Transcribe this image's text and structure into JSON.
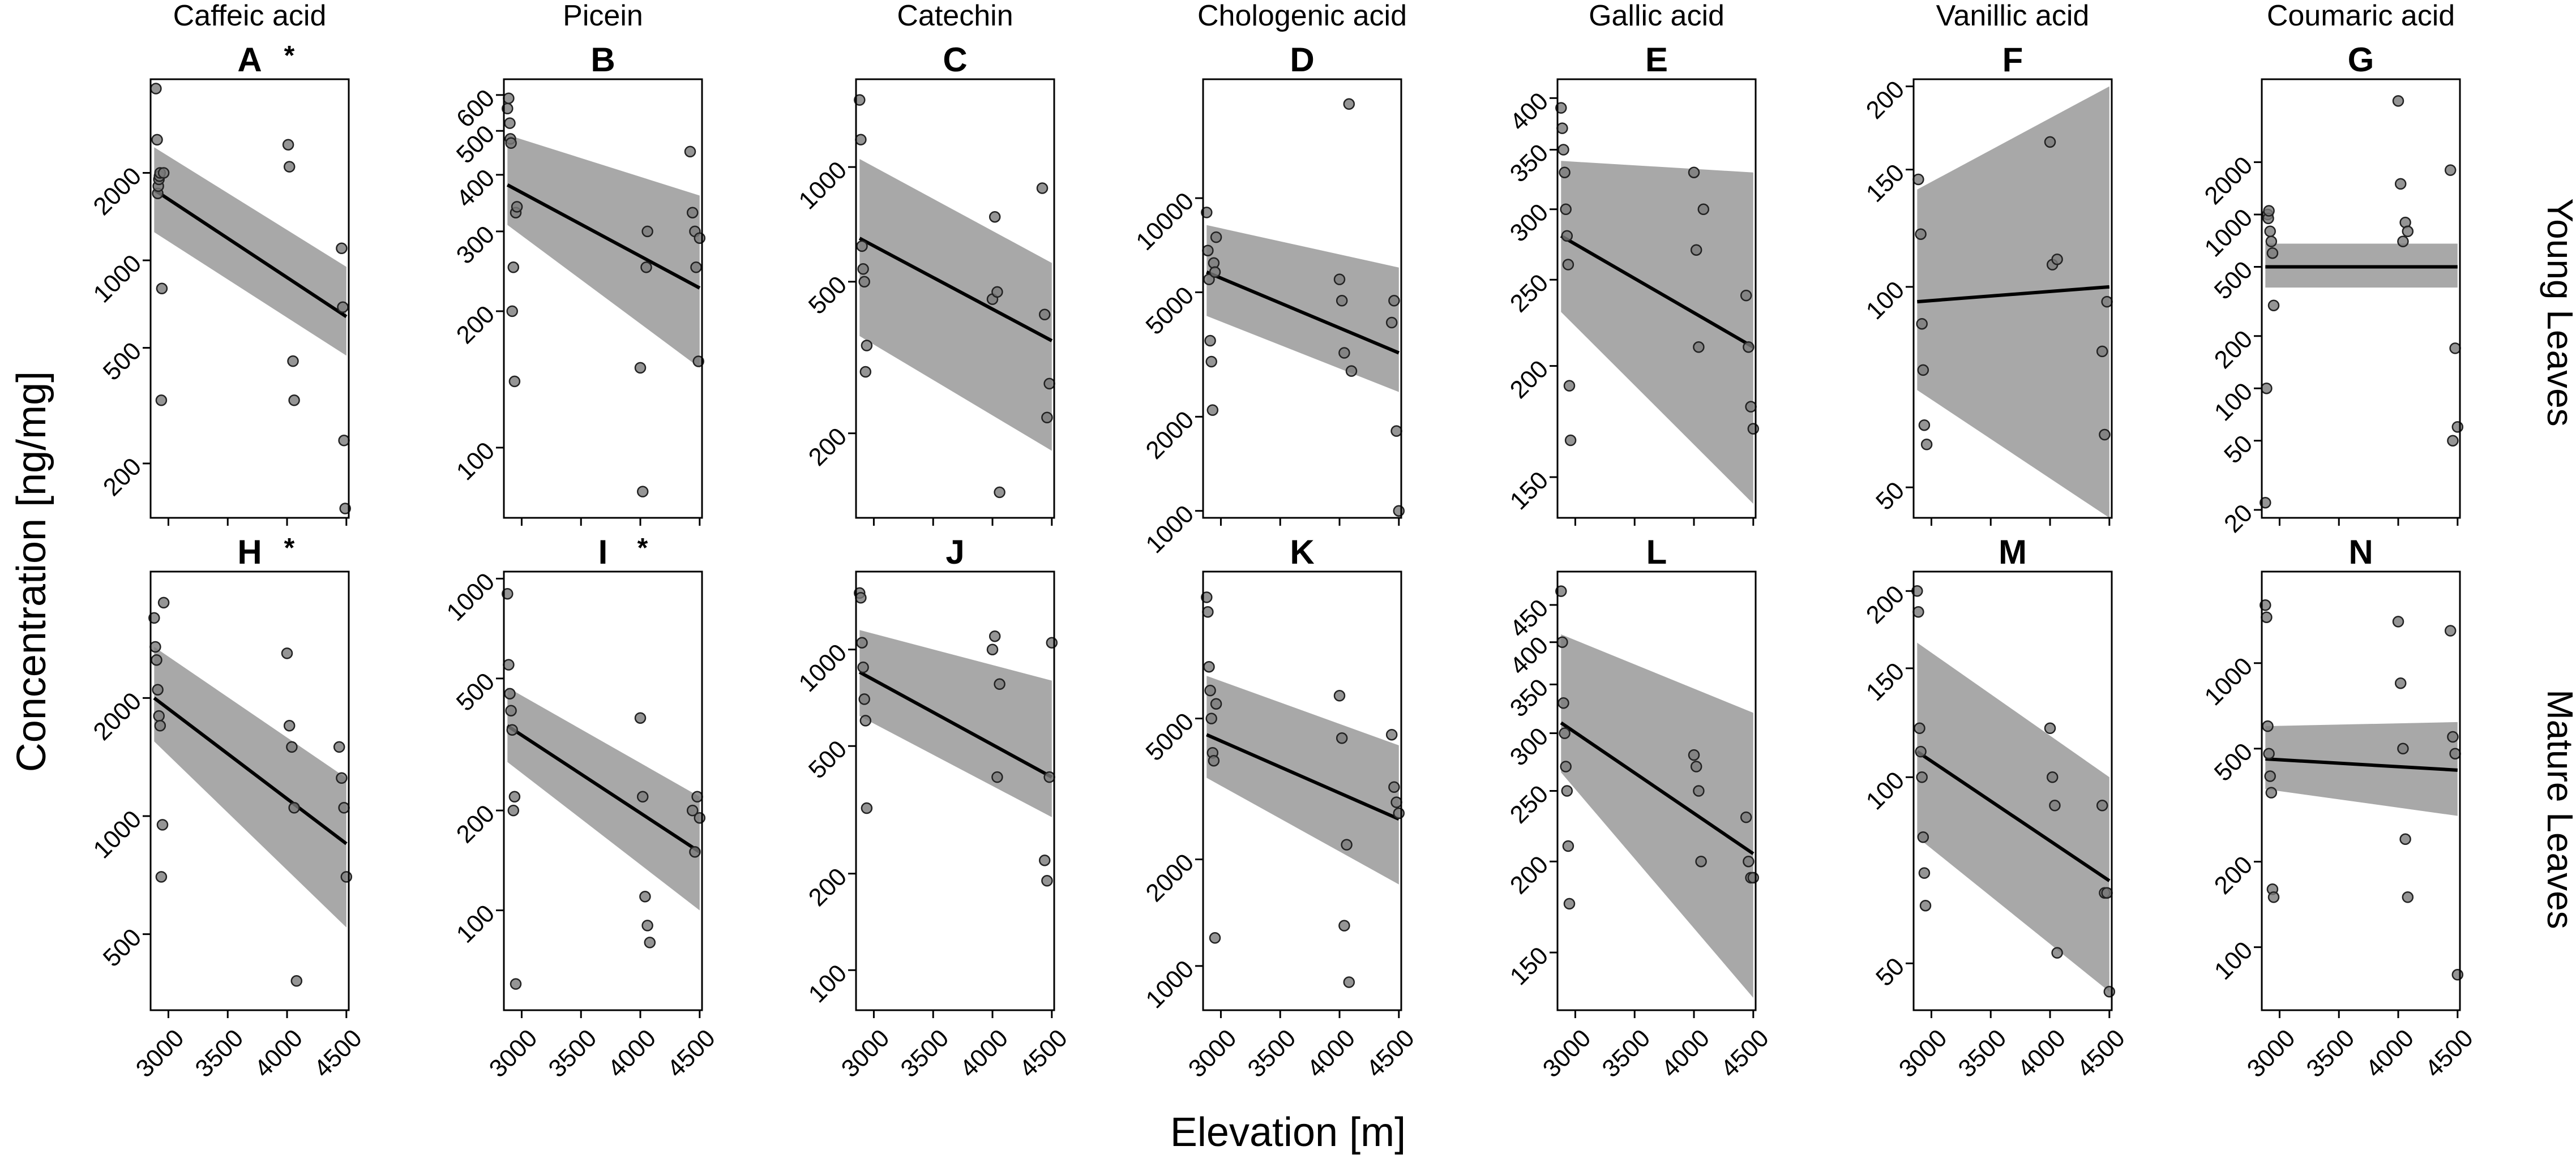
{
  "figure": {
    "x_axis_title": "Elevation [m]",
    "y_axis_title": "Concentration [ng/mg]",
    "row_labels": [
      "Young Leaves",
      "Mature Leaves"
    ],
    "column_titles": [
      "Caffeic acid",
      "Picein",
      "Catechin",
      "Chologenic acid",
      "Gallic acid",
      "Vanillic acid",
      "Coumaric acid"
    ],
    "x_ticks": [
      3000,
      3500,
      4000,
      4500
    ],
    "x_range": [
      2850,
      4520
    ],
    "y_scale": "log",
    "colors": {
      "band": "#a8a8a8",
      "point_fill": "#7a7a7a",
      "line": "#000000",
      "frame": "#000000"
    }
  },
  "chart_data": [
    {
      "type": "scatter",
      "letter": "A",
      "significance": "*",
      "row": "Young Leaves",
      "compound": "Caffeic acid",
      "ylim": [
        130,
        4200
      ],
      "y_ticks": [
        200,
        500,
        1000,
        2000
      ],
      "x": [
        2895,
        2905,
        2910,
        2915,
        2920,
        2925,
        2930,
        2940,
        2945,
        2960,
        4010,
        4020,
        4050,
        4060,
        4460,
        4470,
        4480,
        4490
      ],
      "y": [
        3900,
        2600,
        1700,
        1800,
        1900,
        1950,
        2000,
        330,
        800,
        2000,
        2500,
        2100,
        450,
        330,
        1100,
        690,
        240,
        140
      ],
      "fit": {
        "x": [
          2880,
          4500
        ],
        "y": [
          1750,
          640
        ],
        "lower": [
          1250,
          470
        ],
        "upper": [
          2450,
          950
        ]
      }
    },
    {
      "type": "scatter",
      "letter": "B",
      "significance": "",
      "row": "Young Leaves",
      "compound": "Picein",
      "ylim": [
        70,
        650
      ],
      "y_ticks": [
        100,
        200,
        300,
        400,
        500,
        600
      ],
      "x": [
        2880,
        2890,
        2900,
        2905,
        2910,
        2920,
        2930,
        2940,
        2950,
        2960,
        4000,
        4020,
        4050,
        4060,
        4420,
        4440,
        4460,
        4470,
        4490,
        4500
      ],
      "y": [
        560,
        590,
        520,
        480,
        470,
        200,
        250,
        140,
        330,
        340,
        150,
        80,
        250,
        300,
        450,
        330,
        300,
        250,
        155,
        290
      ],
      "fit": {
        "x": [
          2880,
          4500
        ],
        "y": [
          380,
          225
        ],
        "lower": [
          310,
          150
        ],
        "upper": [
          490,
          360
        ]
      }
    },
    {
      "type": "scatter",
      "letter": "C",
      "significance": "",
      "row": "Young Leaves",
      "compound": "Catechin",
      "ylim": [
        120,
        1700
      ],
      "y_ticks": [
        200,
        500,
        1000
      ],
      "x": [
        2880,
        2890,
        2900,
        2910,
        2920,
        2930,
        2940,
        4000,
        4020,
        4040,
        4060,
        4420,
        4440,
        4460,
        4480
      ],
      "y": [
        1500,
        1180,
        620,
        540,
        500,
        290,
        340,
        450,
        740,
        470,
        140,
        880,
        410,
        220,
        270
      ],
      "fit": {
        "x": [
          2880,
          4500
        ],
        "y": [
          650,
          350
        ],
        "lower": [
          360,
          180
        ],
        "upper": [
          1050,
          560
        ]
      }
    },
    {
      "type": "scatter",
      "letter": "D",
      "significance": "",
      "row": "Young Leaves",
      "compound": "Chologenic acid",
      "ylim": [
        950,
        24000
      ],
      "y_ticks": [
        1000,
        2000,
        5000,
        10000
      ],
      "x": [
        2880,
        2890,
        2900,
        2910,
        2920,
        2930,
        2940,
        2950,
        2960,
        4000,
        4020,
        4040,
        4080,
        4100,
        4440,
        4460,
        4480,
        4500
      ],
      "y": [
        9000,
        6800,
        5500,
        3500,
        3000,
        2100,
        6200,
        5800,
        7500,
        5500,
        4700,
        3200,
        20000,
        2800,
        4000,
        4700,
        1800,
        1000
      ],
      "fit": {
        "x": [
          2880,
          4500
        ],
        "y": [
          5800,
          3200
        ],
        "lower": [
          4200,
          2400
        ],
        "upper": [
          8200,
          6000
        ]
      }
    },
    {
      "type": "scatter",
      "letter": "E",
      "significance": "",
      "row": "Young Leaves",
      "compound": "Gallic acid",
      "ylim": [
        135,
        420
      ],
      "y_ticks": [
        150,
        200,
        250,
        300,
        350,
        400
      ],
      "x": [
        2880,
        2890,
        2900,
        2910,
        2920,
        2930,
        2940,
        2950,
        2960,
        4000,
        4020,
        4040,
        4080,
        4440,
        4460,
        4480,
        4500
      ],
      "y": [
        390,
        370,
        350,
        330,
        300,
        280,
        260,
        190,
        165,
        330,
        270,
        210,
        300,
        240,
        210,
        180,
        170
      ],
      "fit": {
        "x": [
          2880,
          4500
        ],
        "y": [
          280,
          210
        ],
        "lower": [
          230,
          140
        ],
        "upper": [
          340,
          330
        ]
      }
    },
    {
      "type": "scatter",
      "letter": "F",
      "significance": "",
      "row": "Young Leaves",
      "compound": "Vanillic acid",
      "ylim": [
        45,
        205
      ],
      "y_ticks": [
        50,
        100,
        150,
        200
      ],
      "x": [
        2890,
        2910,
        2920,
        2930,
        2940,
        2960,
        4000,
        4020,
        4060,
        4440,
        4460,
        4480
      ],
      "y": [
        145,
        120,
        88,
        75,
        62,
        58,
        165,
        108,
        110,
        80,
        60,
        95
      ],
      "fit": {
        "x": [
          2880,
          4500
        ],
        "y": [
          95,
          100
        ],
        "lower": [
          70,
          45
        ],
        "upper": [
          140,
          200
        ]
      }
    },
    {
      "type": "scatter",
      "letter": "G",
      "significance": "",
      "row": "Young Leaves",
      "compound": "Coumaric acid",
      "ylim": [
        18,
        6000
      ],
      "y_ticks": [
        20,
        50,
        100,
        200,
        500,
        1000,
        2000
      ],
      "x": [
        2880,
        2890,
        2900,
        2905,
        2910,
        2920,
        2930,
        2940,
        2950,
        4000,
        4020,
        4040,
        4060,
        4080,
        4440,
        4460,
        4480,
        4500
      ],
      "y": [
        22,
        100,
        1000,
        950,
        1050,
        800,
        700,
        600,
        300,
        4500,
        1500,
        700,
        900,
        800,
        1800,
        50,
        170,
        60
      ],
      "fit": {
        "x": [
          2880,
          4500
        ],
        "y": [
          500,
          500
        ],
        "lower": [
          380,
          380
        ],
        "upper": [
          680,
          680
        ]
      }
    },
    {
      "type": "scatter",
      "letter": "H",
      "significance": "*",
      "row": "Mature Leaves",
      "compound": "Caffeic acid",
      "ylim": [
        320,
        4200
      ],
      "y_ticks": [
        500,
        1000,
        2000
      ],
      "x": [
        2880,
        2890,
        2900,
        2910,
        2920,
        2930,
        2940,
        2950,
        2960,
        4000,
        4020,
        4040,
        4060,
        4080,
        4440,
        4460,
        4480,
        4500
      ],
      "y": [
        3200,
        2700,
        2500,
        2100,
        1800,
        1700,
        700,
        950,
        3500,
        2600,
        1700,
        1500,
        1050,
        380,
        1500,
        1250,
        1050,
        700
      ],
      "fit": {
        "x": [
          2880,
          4500
        ],
        "y": [
          2000,
          850
        ],
        "lower": [
          1550,
          520
        ],
        "upper": [
          2700,
          1250
        ]
      }
    },
    {
      "type": "scatter",
      "letter": "I",
      "significance": "*",
      "row": "Mature Leaves",
      "compound": "Picein",
      "ylim": [
        50,
        1050
      ],
      "y_ticks": [
        100,
        200,
        500,
        1000
      ],
      "x": [
        2880,
        2890,
        2900,
        2910,
        2920,
        2930,
        2940,
        2950,
        4000,
        4020,
        4040,
        4060,
        4080,
        4440,
        4460,
        4480,
        4500
      ],
      "y": [
        900,
        550,
        450,
        400,
        350,
        200,
        220,
        60,
        380,
        220,
        110,
        90,
        80,
        200,
        150,
        220,
        190
      ],
      "fit": {
        "x": [
          2880,
          4500
        ],
        "y": [
          360,
          150
        ],
        "lower": [
          280,
          100
        ],
        "upper": [
          470,
          220
        ]
      }
    },
    {
      "type": "scatter",
      "letter": "J",
      "significance": "",
      "row": "Mature Leaves",
      "compound": "Catechin",
      "ylim": [
        75,
        1750
      ],
      "y_ticks": [
        100,
        200,
        500,
        1000
      ],
      "x": [
        2880,
        2890,
        2900,
        2910,
        2920,
        2930,
        2940,
        4000,
        4020,
        4040,
        4060,
        4440,
        4460,
        4480,
        4500
      ],
      "y": [
        1500,
        1450,
        1050,
        880,
        700,
        600,
        320,
        1000,
        1100,
        400,
        780,
        220,
        190,
        400,
        1050
      ],
      "fit": {
        "x": [
          2880,
          4500
        ],
        "y": [
          850,
          400
        ],
        "lower": [
          620,
          300
        ],
        "upper": [
          1150,
          800
        ]
      }
    },
    {
      "type": "scatter",
      "letter": "K",
      "significance": "",
      "row": "Mature Leaves",
      "compound": "Chologenic acid",
      "ylim": [
        750,
        13000
      ],
      "y_ticks": [
        1000,
        2000,
        5000
      ],
      "x": [
        2880,
        2890,
        2900,
        2910,
        2920,
        2930,
        2940,
        2950,
        2960,
        4000,
        4020,
        4040,
        4060,
        4080,
        4440,
        4460,
        4480,
        4500
      ],
      "y": [
        11000,
        10000,
        7000,
        6000,
        5000,
        4000,
        3800,
        1200,
        5500,
        5800,
        4400,
        1300,
        2200,
        900,
        4500,
        3200,
        2900,
        2700
      ],
      "fit": {
        "x": [
          2880,
          4500
        ],
        "y": [
          4500,
          2600
        ],
        "lower": [
          3400,
          1700
        ],
        "upper": [
          6600,
          4200
        ]
      }
    },
    {
      "type": "scatter",
      "letter": "L",
      "significance": "",
      "row": "Mature Leaves",
      "compound": "Gallic acid",
      "ylim": [
        125,
        500
      ],
      "y_ticks": [
        150,
        200,
        250,
        300,
        350,
        400,
        450
      ],
      "x": [
        2880,
        2890,
        2900,
        2910,
        2920,
        2930,
        2940,
        2950,
        4000,
        4020,
        4040,
        4060,
        4440,
        4460,
        4480,
        4500
      ],
      "y": [
        470,
        400,
        330,
        300,
        270,
        250,
        210,
        175,
        280,
        270,
        250,
        200,
        230,
        200,
        190,
        190
      ],
      "fit": {
        "x": [
          2880,
          4500
        ],
        "y": [
          310,
          205
        ],
        "lower": [
          265,
          130
        ],
        "upper": [
          410,
          320
        ]
      }
    },
    {
      "type": "scatter",
      "letter": "M",
      "significance": "",
      "row": "Mature Leaves",
      "compound": "Vanillic acid",
      "ylim": [
        42,
        215
      ],
      "y_ticks": [
        50,
        100,
        150,
        200
      ],
      "x": [
        2880,
        2890,
        2900,
        2910,
        2920,
        2930,
        2940,
        2950,
        4000,
        4020,
        4040,
        4060,
        4440,
        4460,
        4480,
        4500
      ],
      "y": [
        200,
        185,
        120,
        110,
        100,
        80,
        70,
        62,
        120,
        100,
        90,
        52,
        90,
        65,
        65,
        45
      ],
      "fit": {
        "x": [
          2880,
          4500
        ],
        "y": [
          110,
          68
        ],
        "lower": [
          80,
          45
        ],
        "upper": [
          165,
          100
        ]
      }
    },
    {
      "type": "scatter",
      "letter": "N",
      "significance": "",
      "row": "Mature Leaves",
      "compound": "Coumaric acid",
      "ylim": [
        60,
        2100
      ],
      "y_ticks": [
        100,
        200,
        500,
        1000
      ],
      "x": [
        2880,
        2890,
        2900,
        2910,
        2920,
        2930,
        2940,
        2950,
        4000,
        4020,
        4040,
        4060,
        4080,
        4440,
        4460,
        4480,
        4500
      ],
      "y": [
        1600,
        1450,
        600,
        480,
        400,
        350,
        160,
        150,
        1400,
        850,
        500,
        240,
        150,
        1300,
        550,
        480,
        80
      ],
      "fit": {
        "x": [
          2880,
          4500
        ],
        "y": [
          460,
          420
        ],
        "lower": [
          360,
          290
        ],
        "upper": [
          600,
          620
        ]
      }
    }
  ]
}
